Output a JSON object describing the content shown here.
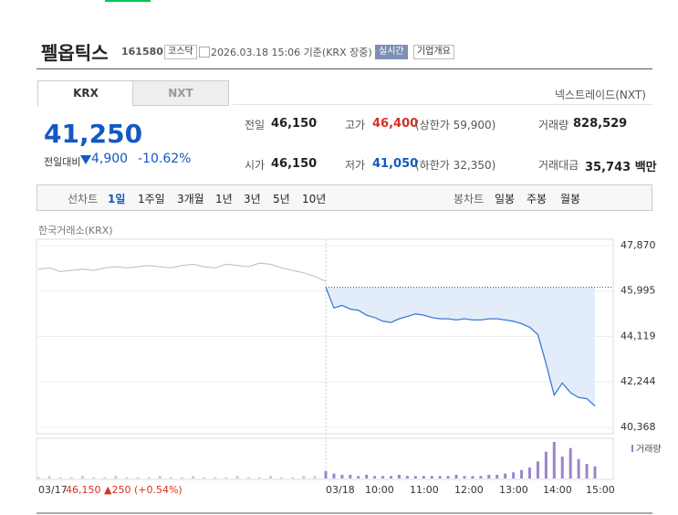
{
  "header": {
    "name": "펠옵틱스",
    "code": "161580",
    "market": "코스닥",
    "timestamp": "2026.03.18 15:06 기준(KRX 장중)",
    "realtime": "실시간",
    "overview": "기업개요"
  },
  "tabs": [
    "KRX",
    "NXT"
  ],
  "nxt_link": "넥스트레이드(NXT)",
  "price": {
    "current": "41,250",
    "change_label": "전일대비",
    "change": "4,900",
    "change_rate": "-10.62%"
  },
  "stats": [
    {
      "label": "전일",
      "value": "46,150"
    },
    {
      "label": "고가",
      "value": "46,400",
      "note": "(상한가 59,900)"
    },
    {
      "label": "거래량",
      "value": "828,529"
    },
    {
      "label": "시가",
      "value": "46,150"
    },
    {
      "label": "저가",
      "value": "41,050",
      "note": "(하한가 32,350)"
    },
    {
      "label": "거래대금",
      "value": "35,743 백만"
    }
  ],
  "chart_tabs": {
    "line": "선차트",
    "periods": [
      "1일",
      "1주일",
      "3개월",
      "1년",
      "3년",
      "5년",
      "10년"
    ],
    "candle": "봉차트",
    "candle_periods": [
      "일봉",
      "주봉",
      "월봉"
    ]
  },
  "chart_data": {
    "type": "line",
    "source": "한국거래소(KRX)",
    "ylim": [
      40368,
      47870
    ],
    "yticks": [
      {
        "value": 47870,
        "label": "47,870"
      },
      {
        "value": 45995,
        "label": "45,995"
      },
      {
        "value": 44119,
        "label": "44,119"
      },
      {
        "value": 42244,
        "label": "42,244"
      },
      {
        "value": 40368,
        "label": "40,368"
      }
    ],
    "prev_close": 46150,
    "prev_color": "#bbbbbb",
    "color": "#3b7ad8",
    "area_color": "#e3edf9",
    "prev_values": [
      46900,
      46950,
      46800,
      46850,
      46900,
      46850,
      46950,
      47000,
      46950,
      47000,
      47050,
      47000,
      46950,
      47050,
      47100,
      47000,
      46950,
      47100,
      47050,
      47000,
      47150,
      47100,
      46950,
      46850,
      46750,
      46600,
      46400
    ],
    "values": [
      46150,
      45300,
      45400,
      45250,
      45200,
      45000,
      44900,
      44750,
      44700,
      44850,
      44950,
      45050,
      45000,
      44900,
      44850,
      44850,
      44800,
      44850,
      44800,
      44800,
      44850,
      44850,
      44800,
      44750,
      44650,
      44500,
      44200,
      43000,
      41700,
      42200,
      41800,
      41600,
      41550,
      41250
    ],
    "prev_label": "03/17",
    "prev_summary": "46,150 ▲250 (+0.54%)",
    "x_labels": [
      "03/18",
      "10:00",
      "11:00",
      "12:00",
      "13:00",
      "14:00",
      "15:00"
    ],
    "volume": {
      "name": "거래량",
      "color": "#9b84cc",
      "prev_values": [
        1,
        2,
        1,
        1,
        2,
        1,
        1,
        2,
        1,
        1,
        1,
        2,
        1,
        1,
        2,
        1,
        1,
        1,
        2,
        1,
        1,
        2,
        1,
        1,
        2,
        2,
        3
      ],
      "values": [
        6,
        4,
        3,
        3,
        2,
        3,
        2,
        2,
        2,
        3,
        2,
        2,
        2,
        2,
        2,
        2,
        3,
        2,
        2,
        2,
        3,
        3,
        4,
        5,
        7,
        9,
        14,
        22,
        30,
        18,
        25,
        16,
        12,
        10
      ]
    }
  }
}
